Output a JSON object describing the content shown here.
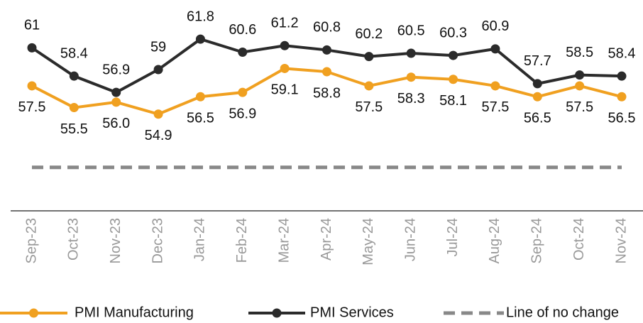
{
  "chart_data": {
    "type": "line",
    "categories": [
      "Sep-23",
      "Oct-23",
      "Nov-23",
      "Dec-23",
      "Jan-24",
      "Feb-24",
      "Mar-24",
      "Apr-24",
      "May-24",
      "Jun-24",
      "Jul-24",
      "Aug-24",
      "Sep-24",
      "Oct-24",
      "Nov-24"
    ],
    "series": [
      {
        "name": "PMI Manufacturing",
        "color": "#f0a020",
        "label_position": "below",
        "values": [
          57.5,
          55.5,
          56.0,
          54.9,
          56.5,
          56.9,
          59.1,
          58.8,
          57.5,
          58.3,
          58.1,
          57.5,
          56.5,
          57.5,
          56.5
        ],
        "value_labels": [
          "57.5",
          "55.5",
          "56.0",
          "54.9",
          "56.5",
          "56.9",
          "59.1",
          "58.8",
          "57.5",
          "58.3",
          "58.1",
          "57.5",
          "56.5",
          "57.5",
          "56.5"
        ]
      },
      {
        "name": "PMI Services",
        "color": "#2b2b2b",
        "label_position": "above",
        "values": [
          61,
          58.4,
          56.9,
          59,
          61.8,
          60.6,
          61.2,
          60.8,
          60.2,
          60.5,
          60.3,
          60.9,
          57.7,
          58.5,
          58.4
        ],
        "value_labels": [
          "61",
          "58.4",
          "56.9",
          "59",
          "61.8",
          "60.6",
          "61.2",
          "60.8",
          "60.2",
          "60.5",
          "60.3",
          "60.9",
          "57.7",
          "58.5",
          "58.4"
        ]
      },
      {
        "name": "Line of no change",
        "color": "#888888",
        "dashed": true,
        "values": [
          50,
          50,
          50,
          50,
          50,
          50,
          50,
          50,
          50,
          50,
          50,
          50,
          50,
          50,
          50
        ]
      }
    ],
    "ylim": [
      46,
      65.4
    ]
  }
}
